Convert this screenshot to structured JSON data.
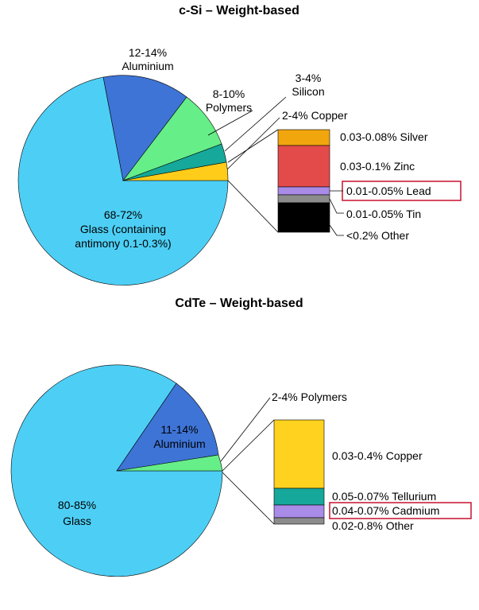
{
  "chart_data": [
    {
      "type": "pie",
      "title": "c-Si – Weight-based",
      "slices": [
        {
          "label_lines": [
            "68-72%",
            "Glass (containing",
            "antimony 0.1-0.3%)"
          ],
          "range": [
            68,
            72
          ],
          "color": "#4dcff5"
        },
        {
          "label_lines": [
            "12-14%",
            "Aluminium"
          ],
          "range": [
            12,
            14
          ],
          "color": "#3e74d6"
        },
        {
          "label_lines": [
            "8-10%",
            "Polymers"
          ],
          "range": [
            8,
            10
          ],
          "color": "#66ee88"
        },
        {
          "label_lines": [
            "3-4%",
            "Silicon"
          ],
          "range": [
            3,
            4
          ],
          "color": "#16a89a"
        },
        {
          "label_lines": [
            "2-4% Copper"
          ],
          "range": [
            2,
            4
          ],
          "color": "#ffcc1a"
        }
      ],
      "breakdown": [
        {
          "label": "0.03-0.08% Silver",
          "color": "#f2a60d",
          "highlight": false
        },
        {
          "label": "0.03-0.1% Zinc",
          "color": "#e34b4b",
          "highlight": false
        },
        {
          "label": "0.01-0.05% Lead",
          "color": "#a98be8",
          "highlight": true
        },
        {
          "label": "0.01-0.05% Tin",
          "color": "#8c8c8c",
          "highlight": false
        },
        {
          "label": "<0.2% Other",
          "color": "#000000",
          "highlight": false
        }
      ]
    },
    {
      "type": "pie",
      "title": "CdTe – Weight-based",
      "slices": [
        {
          "label_lines": [
            "80-85%",
            "Glass"
          ],
          "range": [
            80,
            85
          ],
          "color": "#4dcff5"
        },
        {
          "label_lines": [
            "11-14%",
            "Aluminium"
          ],
          "range": [
            11,
            14
          ],
          "color": "#3e74d6"
        },
        {
          "label_lines": [
            "2-4% Polymers"
          ],
          "range": [
            2,
            4
          ],
          "color": "#66ee88"
        }
      ],
      "breakdown": [
        {
          "label": "0.03-0.4% Copper",
          "color": "#ffd21f",
          "highlight": false
        },
        {
          "label": "0.05-0.07% Tellurium",
          "color": "#16a89a",
          "highlight": false
        },
        {
          "label": "0.04-0.07% Cadmium",
          "color": "#a98be8",
          "highlight": true
        },
        {
          "label": "0.02-0.8% Other",
          "color": "#8c8c8c",
          "highlight": false
        }
      ]
    }
  ]
}
